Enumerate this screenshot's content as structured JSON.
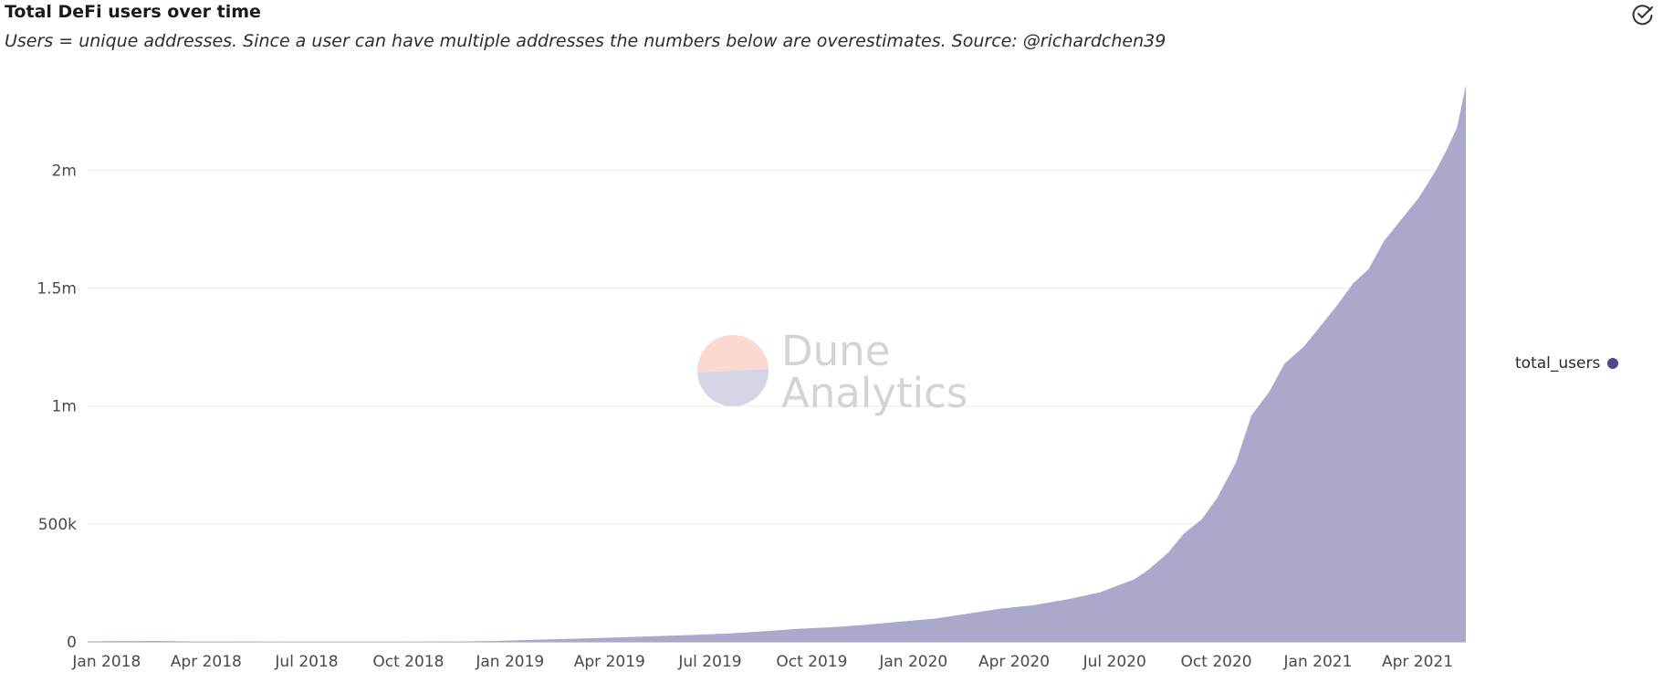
{
  "header": {
    "title": "Total DeFi users over time",
    "subtitle": "Users = unique addresses. Since a user can have multiple addresses the numbers below are overestimates. Source: @richardchen39",
    "check_icon": "check-circle-icon"
  },
  "watermark": {
    "line1": "Dune",
    "line2": "Analytics"
  },
  "legend": {
    "series_name": "total_users",
    "dot_color": "#4c4a8f"
  },
  "colors": {
    "area_fill": "#aaa9cc",
    "grid": "#ececec",
    "axis": "#cfcfcf"
  },
  "chart_data": {
    "type": "area",
    "title": "Total DeFi users over time",
    "subtitle": "Users = unique addresses. Since a user can have multiple addresses the numbers below are overestimates. Source: @richardchen39",
    "xlabel": "",
    "ylabel": "",
    "x_range": [
      "2017-12-28",
      "2021-05-28"
    ],
    "ylim": [
      0,
      2350000
    ],
    "y_ticks": [
      0,
      500000,
      1000000,
      1500000,
      2000000
    ],
    "y_tick_labels": [
      "0",
      "500k",
      "1m",
      "1.5m",
      "2m"
    ],
    "x_ticks": [
      "2018-01-01",
      "2018-04-01",
      "2018-07-01",
      "2018-10-01",
      "2019-01-01",
      "2019-04-01",
      "2019-07-01",
      "2019-10-01",
      "2020-01-01",
      "2020-04-01",
      "2020-07-01",
      "2020-10-01",
      "2021-01-01",
      "2021-04-01"
    ],
    "x_tick_labels": [
      "Jan 2018",
      "Apr 2018",
      "Jul 2018",
      "Oct 2018",
      "Jan 2019",
      "Apr 2019",
      "Jul 2019",
      "Oct 2019",
      "Jan 2020",
      "Apr 2020",
      "Jul 2020",
      "Oct 2020",
      "Jan 2021",
      "Apr 2021"
    ],
    "grid": true,
    "legend_position": "right",
    "series": [
      {
        "name": "total_users",
        "x": [
          "2017-12-28",
          "2018-01-15",
          "2018-03-01",
          "2018-04-01",
          "2018-07-01",
          "2018-10-01",
          "2018-12-01",
          "2019-01-01",
          "2019-02-01",
          "2019-03-01",
          "2019-04-01",
          "2019-05-01",
          "2019-06-01",
          "2019-07-01",
          "2019-08-01",
          "2019-09-01",
          "2019-10-01",
          "2019-11-01",
          "2019-12-01",
          "2020-01-01",
          "2020-02-01",
          "2020-03-01",
          "2020-04-01",
          "2020-05-01",
          "2020-06-01",
          "2020-07-01",
          "2020-07-15",
          "2020-08-01",
          "2020-08-15",
          "2020-09-01",
          "2020-09-15",
          "2020-10-01",
          "2020-10-15",
          "2020-11-01",
          "2020-11-15",
          "2020-12-01",
          "2020-12-15",
          "2021-01-01",
          "2021-01-15",
          "2021-02-01",
          "2021-02-15",
          "2021-03-01",
          "2021-03-15",
          "2021-04-01",
          "2021-04-15",
          "2021-05-01",
          "2021-05-10",
          "2021-05-20",
          "2021-05-28"
        ],
        "values": [
          2000,
          3000,
          4000,
          2000,
          1500,
          1500,
          2000,
          4000,
          8000,
          12000,
          16000,
          20000,
          25000,
          30000,
          36000,
          45000,
          55000,
          62000,
          72000,
          85000,
          98000,
          118000,
          140000,
          155000,
          180000,
          210000,
          235000,
          265000,
          310000,
          380000,
          460000,
          520000,
          610000,
          760000,
          960000,
          1060000,
          1180000,
          1250000,
          1330000,
          1430000,
          1520000,
          1580000,
          1700000,
          1800000,
          1880000,
          2000000,
          2080000,
          2180000,
          2360000
        ]
      }
    ]
  }
}
